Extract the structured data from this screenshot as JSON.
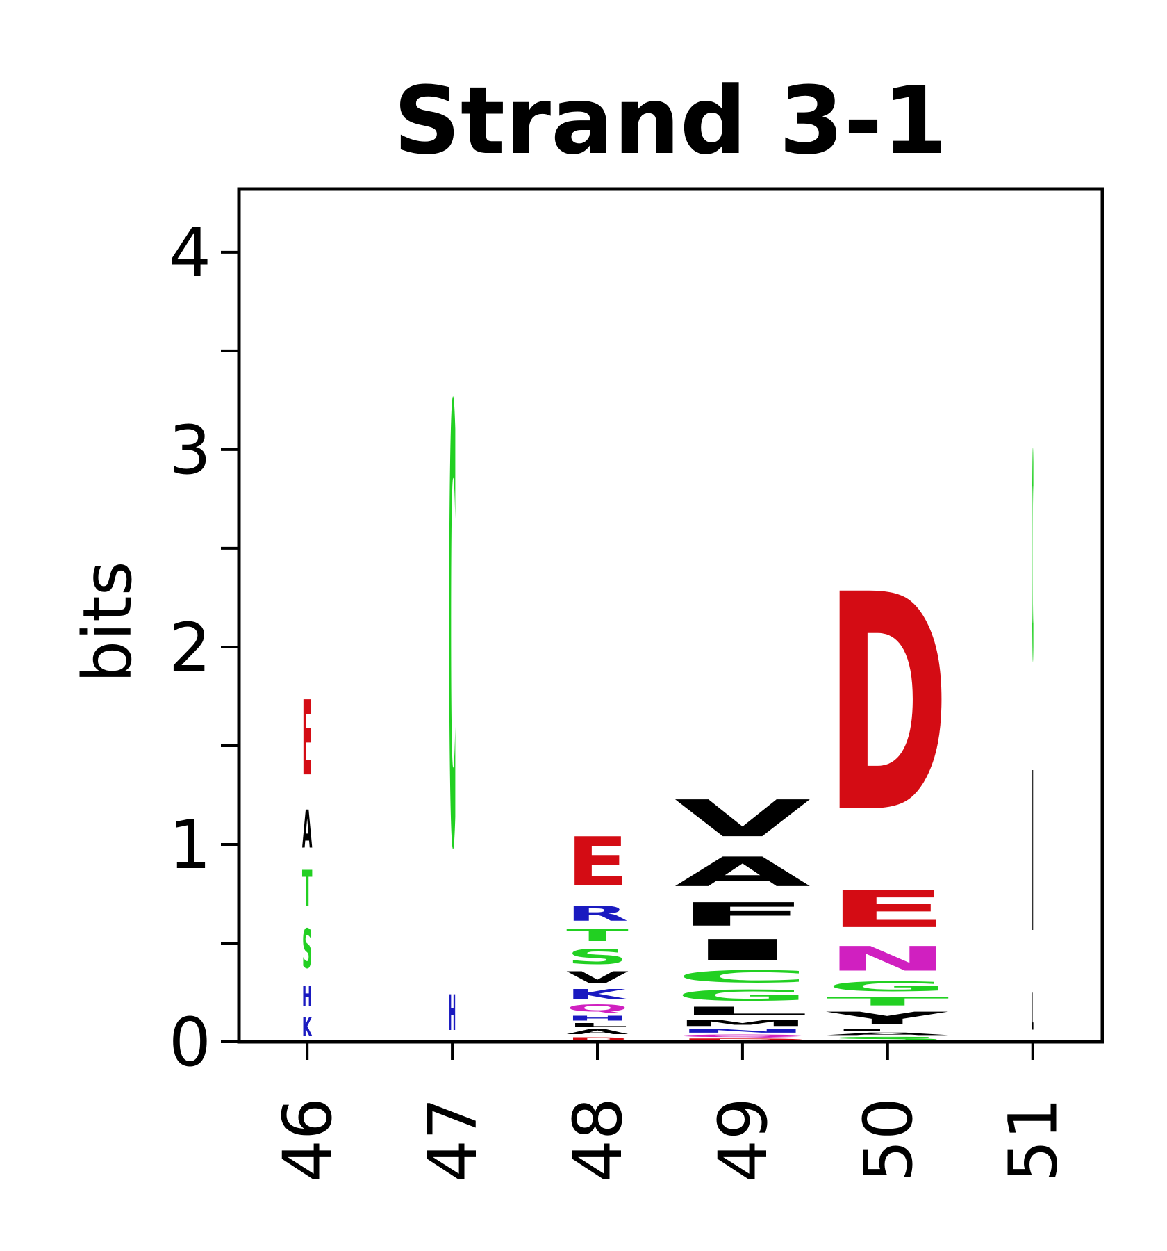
{
  "chart_data": {
    "type": "logo",
    "title": "Strand 3-1",
    "ylabel": "bits",
    "ylim": [
      0,
      4.32
    ],
    "yticks": [
      0,
      1,
      2,
      3,
      4
    ],
    "yticks_minor": [
      0.5,
      1.5,
      2.5,
      3.5
    ],
    "xlim": [
      45.53,
      51.48
    ],
    "x": [
      46,
      47,
      48,
      49,
      50,
      51
    ],
    "xticks": [
      46,
      47,
      48,
      49,
      50,
      51
    ],
    "column_widths": [
      0.07,
      0.05,
      0.43,
      0.94,
      0.85,
      0.01
    ],
    "stacks": [
      {
        "letters": [
          {
            "letter": "K",
            "color": "#1a1ac0",
            "height": 0.15
          },
          {
            "letter": "H",
            "color": "#1a1ac0",
            "height": 0.16
          },
          {
            "letter": "S",
            "color": "#22d022",
            "height": 0.32
          },
          {
            "letter": "T",
            "color": "#22d022",
            "height": 0.29
          },
          {
            "letter": "A",
            "color": "#000000",
            "height": 0.31
          },
          {
            "letter": "E",
            "color": "#d40c14",
            "height": 0.61
          }
        ]
      },
      {
        "letters": [
          {
            "letter": "H",
            "color": "#1a1ac0",
            "height": 0.29
          },
          {
            "letter": "C",
            "color": "#22d022",
            "height": 3.55
          }
        ]
      },
      {
        "letters": [
          {
            "letter": "D",
            "color": "#d40c14",
            "height": 0.03
          },
          {
            "letter": "A",
            "color": "#000000",
            "height": 0.04
          },
          {
            "letter": "L",
            "color": "#000000",
            "height": 0.03
          },
          {
            "letter": "H",
            "color": "#1a1ac0",
            "height": 0.04
          },
          {
            "letter": "Q",
            "color": "#d020c0",
            "height": 0.06
          },
          {
            "letter": "K",
            "color": "#1a1ac0",
            "height": 0.08
          },
          {
            "letter": "V",
            "color": "#000000",
            "height": 0.09
          },
          {
            "letter": "S",
            "color": "#22d022",
            "height": 0.12
          },
          {
            "letter": "T",
            "color": "#22d022",
            "height": 0.1
          },
          {
            "letter": "R",
            "color": "#1a1ac0",
            "height": 0.12
          },
          {
            "letter": "E",
            "color": "#d40c14",
            "height": 0.4
          }
        ]
      },
      {
        "letters": [
          {
            "letter": "D",
            "color": "#d40c14",
            "height": 0.02
          },
          {
            "letter": "Q",
            "color": "#d020c0",
            "height": 0.02
          },
          {
            "letter": "N",
            "color": "#1a1ac0",
            "height": 0.03
          },
          {
            "letter": "M",
            "color": "#000000",
            "height": 0.05
          },
          {
            "letter": "L",
            "color": "#000000",
            "height": 0.07
          },
          {
            "letter": "G",
            "color": "#22d022",
            "height": 0.09
          },
          {
            "letter": "C",
            "color": "#22d022",
            "height": 0.1
          },
          {
            "letter": "I",
            "color": "#000000",
            "height": 0.17
          },
          {
            "letter": "F",
            "color": "#000000",
            "height": 0.19
          },
          {
            "letter": "A",
            "color": "#000000",
            "height": 0.24
          },
          {
            "letter": "V",
            "color": "#000000",
            "height": 0.3
          }
        ]
      },
      {
        "letters": [
          {
            "letter": "S",
            "color": "#22d022",
            "height": 0.03
          },
          {
            "letter": "A",
            "color": "#000000",
            "height": 0.02
          },
          {
            "letter": "L",
            "color": "#000000",
            "height": 0.02
          },
          {
            "letter": "Y",
            "color": "#000000",
            "height": 0.1
          },
          {
            "letter": "T",
            "color": "#22d022",
            "height": 0.07
          },
          {
            "letter": "G",
            "color": "#22d022",
            "height": 0.08
          },
          {
            "letter": "N",
            "color": "#d020c0",
            "height": 0.2
          },
          {
            "letter": "E",
            "color": "#d40c14",
            "height": 0.3
          },
          {
            "letter": "D",
            "color": "#d40c14",
            "height": 1.77
          }
        ]
      },
      {
        "letters": [
          {
            "letter": "L",
            "color": "#000000",
            "height": 0.3
          },
          {
            "letter": "I",
            "color": "#000000",
            "height": 1.3
          },
          {
            "letter": "C",
            "color": "#22d022",
            "height": 1.68
          }
        ]
      }
    ]
  }
}
